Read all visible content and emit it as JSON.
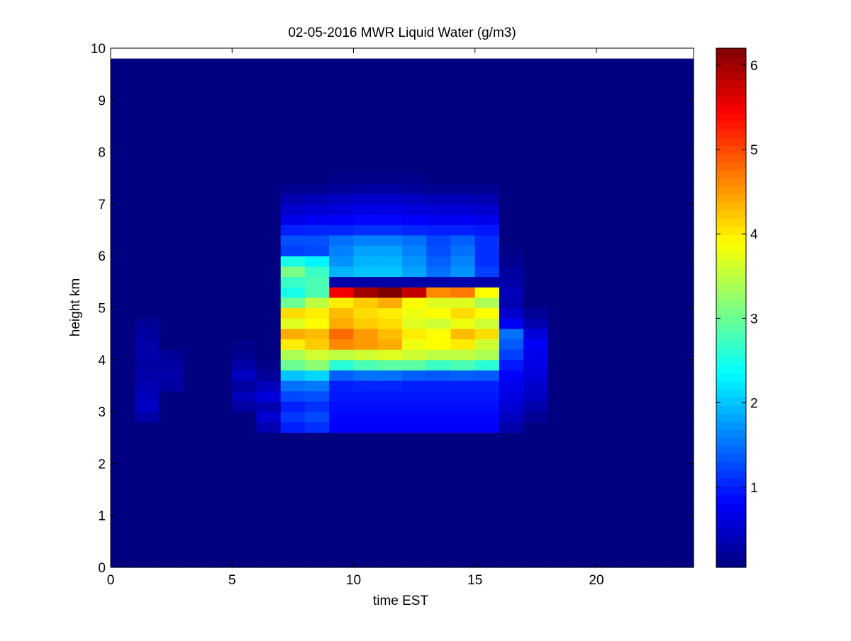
{
  "chart_data": {
    "type": "heatmap",
    "title": "02-05-2016 MWR Liquid Water (g/m3)",
    "xlabel": "time EST",
    "ylabel": "height km",
    "xlim": [
      0,
      24
    ],
    "ylim": [
      0,
      10
    ],
    "x_ticks": [
      0,
      5,
      10,
      15,
      20
    ],
    "y_ticks": [
      0,
      1,
      2,
      3,
      4,
      5,
      6,
      7,
      8,
      9,
      10
    ],
    "colorbar": {
      "range": [
        0.05,
        6.2
      ],
      "ticks": [
        1,
        2,
        3,
        4,
        5,
        6
      ],
      "colormap": "jet"
    },
    "grid": false,
    "x_centers": [
      0,
      1,
      2,
      3,
      4,
      5,
      6,
      7,
      8,
      9,
      10,
      11,
      12,
      13,
      14,
      15,
      16,
      17,
      18,
      19,
      20,
      21,
      22,
      23
    ],
    "y_centers": [
      0,
      0.2,
      0.4,
      0.6,
      0.8,
      1.0,
      1.2,
      1.4,
      1.6,
      1.8,
      2.0,
      2.2,
      2.4,
      2.6,
      2.8,
      3.0,
      3.2,
      3.4,
      3.6,
      3.8,
      4.0,
      4.2,
      4.4,
      4.6,
      4.8,
      5.0,
      5.2,
      5.4,
      5.6,
      5.8,
      6.0,
      6.2,
      6.4,
      6.6,
      6.8,
      7.0,
      7.2,
      7.4,
      7.6,
      7.8,
      8.0,
      8.2,
      8.4,
      8.6,
      8.8,
      9.0,
      9.2,
      9.4,
      9.6
    ],
    "profiles": {
      "p5": [
        0.25,
        0.4,
        0.25,
        0.45,
        0.3,
        0.15,
        0.1
      ],
      "p6": [
        0.35,
        0.55,
        0.35,
        0.6,
        0.4,
        0.2,
        0.1
      ],
      "p7": [
        1.0,
        1.15,
        1.0,
        1.25,
        1.5,
        2.0,
        3.0,
        3.4,
        4.0,
        4.4,
        3.7,
        4.1,
        3.0,
        2.5,
        2.7,
        3.1,
        2.5,
        1.2,
        1.3,
        1.0,
        0.7,
        0.5,
        0.35,
        0.15,
        0.05
      ],
      "p8": [
        1.1,
        1.25,
        1.1,
        1.3,
        1.55,
        2.1,
        3.2,
        3.6,
        4.2,
        4.3,
        3.9,
        4.0,
        3.5,
        2.8,
        2.8,
        2.7,
        2.3,
        1.25,
        1.3,
        1.05,
        0.75,
        0.55,
        0.4,
        0.15,
        0.05
      ],
      "p9": [
        0.8,
        0.85,
        0.9,
        0.95,
        1.0,
        1.4,
        2.6,
        3.5,
        4.6,
        4.8,
        4.4,
        4.3,
        4.0,
        5.5,
        0.3,
        1.9,
        1.7,
        1.6,
        1.5,
        1.05,
        0.8,
        0.6,
        0.45,
        0.2,
        0.1
      ],
      "p10": [
        0.8,
        0.85,
        0.9,
        0.95,
        1.05,
        1.5,
        2.8,
        3.6,
        4.5,
        4.5,
        4.2,
        4.1,
        4.2,
        6.0,
        0.3,
        2.0,
        1.9,
        1.8,
        1.6,
        1.1,
        0.85,
        0.65,
        0.5,
        0.25,
        0.1
      ],
      "p11": [
        0.8,
        0.85,
        0.9,
        0.95,
        1.05,
        1.5,
        2.9,
        3.7,
        4.4,
        4.3,
        4.1,
        4.0,
        4.4,
        6.2,
        0.3,
        2.0,
        1.9,
        1.8,
        1.6,
        1.1,
        0.85,
        0.65,
        0.5,
        0.25,
        0.1
      ],
      "p12": [
        0.8,
        0.85,
        0.9,
        0.95,
        1.0,
        1.4,
        2.9,
        3.6,
        3.8,
        4.0,
        3.7,
        3.8,
        3.9,
        5.8,
        0.3,
        1.8,
        1.7,
        1.6,
        1.5,
        1.05,
        0.8,
        0.6,
        0.45,
        0.2,
        0.1
      ],
      "p13": [
        0.8,
        0.85,
        0.9,
        0.95,
        1.0,
        1.35,
        2.7,
        3.5,
        3.9,
        3.9,
        3.6,
        3.9,
        3.7,
        4.6,
        0.3,
        1.5,
        1.4,
        1.3,
        1.25,
        1.0,
        0.75,
        0.55,
        0.4,
        0.15,
        0.05
      ],
      "p14": [
        0.8,
        0.85,
        0.9,
        0.95,
        1.0,
        1.4,
        2.8,
        3.5,
        4.0,
        4.3,
        3.8,
        4.1,
        3.7,
        4.7,
        0.3,
        1.7,
        1.6,
        1.5,
        1.4,
        1.0,
        0.75,
        0.55,
        0.4,
        0.15,
        0.05
      ],
      "p15": [
        0.8,
        0.85,
        0.9,
        0.95,
        1.0,
        1.35,
        2.6,
        3.4,
        3.6,
        4.1,
        3.6,
        3.9,
        3.4,
        3.9,
        0.3,
        1.2,
        1.1,
        1.1,
        1.1,
        0.95,
        0.7,
        0.5,
        0.35,
        0.15,
        0.05
      ],
      "p16": [
        0.3,
        0.45,
        0.55,
        0.65,
        0.7,
        0.8,
        0.95,
        1.2,
        1.35,
        1.5,
        0.75,
        0.5,
        0.35,
        0.4,
        0.3,
        0.25,
        0.15,
        0.1
      ],
      "p17": [
        0.2,
        0.3,
        0.45,
        0.5,
        0.6,
        0.65,
        0.7,
        0.75,
        0.6,
        0.35,
        0.2
      ]
    }
  }
}
